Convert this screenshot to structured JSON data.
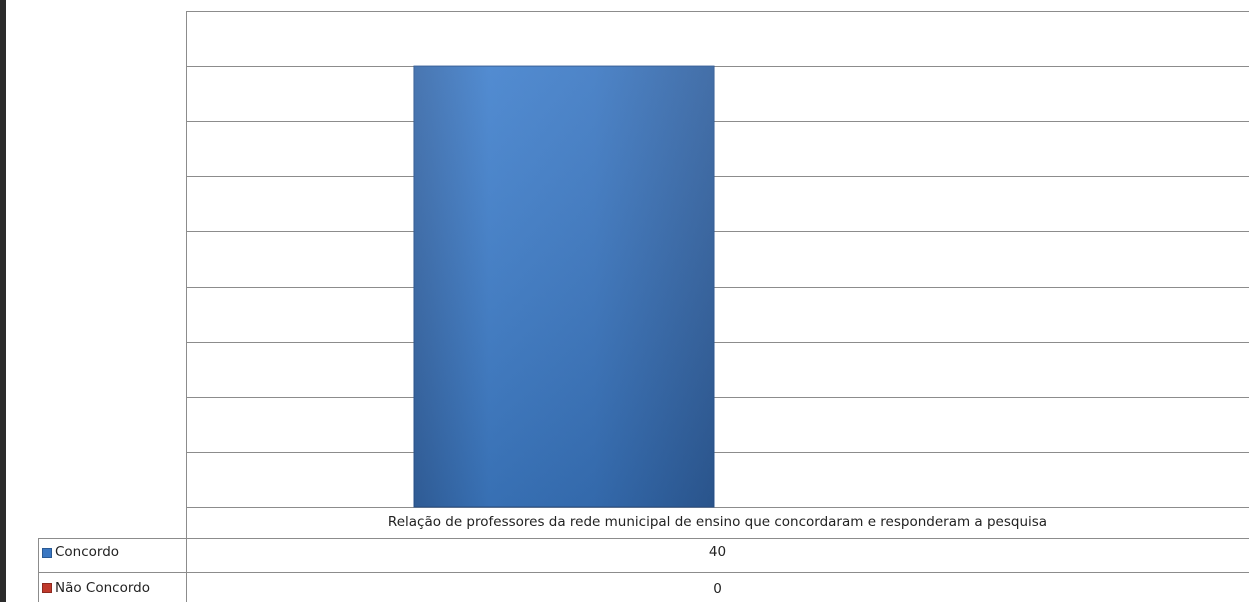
{
  "chart_data": {
    "type": "bar",
    "categories": [
      "Relação de professores da rede municipal de ensino que concordaram e responderam a pesquisa"
    ],
    "series": [
      {
        "name": "Concordo",
        "values": [
          40
        ],
        "color": "#3F7FCC"
      },
      {
        "name": "Não Concordo",
        "values": [
          0
        ],
        "color": "#C0392B"
      }
    ],
    "ylim": [
      0,
      45
    ],
    "grid": true,
    "legend": "data-table-left",
    "title": "",
    "xlabel": "",
    "ylabel": ""
  },
  "table": {
    "category_label": "Relação de professores da rede municipal de ensino que concordaram e responderam a pesquisa",
    "rows": [
      {
        "label": "Concordo",
        "value": "40"
      },
      {
        "label": "Não Concordo",
        "value": "0"
      }
    ]
  }
}
